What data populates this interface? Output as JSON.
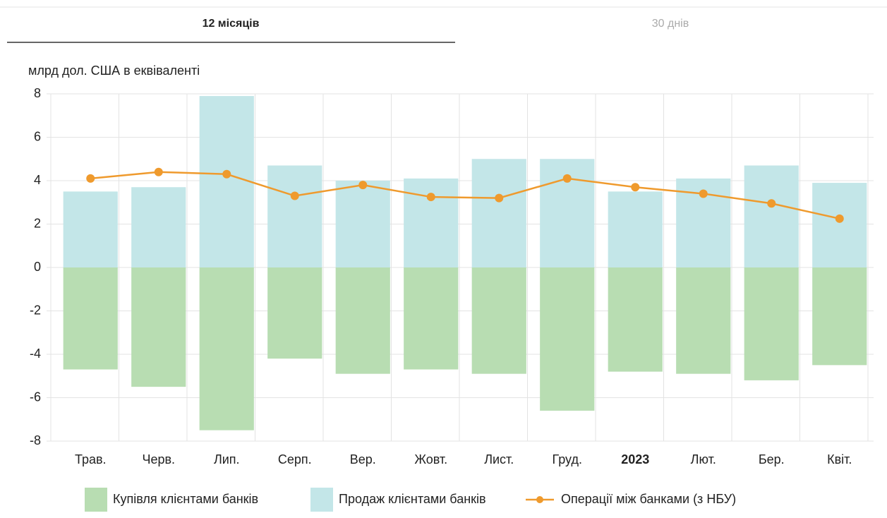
{
  "tabs": [
    {
      "label": "12 місяців",
      "active": true
    },
    {
      "label": "30 днів",
      "active": false
    }
  ],
  "chart_data": {
    "type": "bar",
    "y_axis_title": "млрд дол. США в еквіваленті",
    "categories": [
      "Трав.",
      "Черв.",
      "Лип.",
      "Серп.",
      "Вер.",
      "Жовт.",
      "Лист.",
      "Груд.",
      "2023",
      "Лют.",
      "Бер.",
      "Квіт."
    ],
    "series": [
      {
        "name": "Купівля клієнтами банків",
        "type": "bar",
        "color": "#b8ddb2",
        "values": [
          -4.7,
          -5.5,
          -7.5,
          -4.2,
          -4.9,
          -4.7,
          -4.9,
          -6.6,
          -4.8,
          -4.9,
          -5.2,
          -4.5
        ]
      },
      {
        "name": "Продаж клієнтами банків",
        "type": "bar",
        "color": "#c3e6e8",
        "values": [
          3.5,
          3.7,
          7.9,
          4.7,
          4.0,
          4.1,
          5.0,
          5.0,
          3.5,
          4.1,
          4.7,
          3.9
        ]
      },
      {
        "name": "Операції між банками (з НБУ)",
        "type": "line",
        "color": "#ef9a2d",
        "values": [
          4.1,
          4.4,
          4.3,
          3.3,
          3.8,
          3.25,
          3.2,
          4.1,
          3.7,
          3.4,
          2.95,
          2.25
        ]
      }
    ],
    "ylim": [
      -8,
      8
    ],
    "yticks": [
      -8,
      -6,
      -4,
      -2,
      0,
      2,
      4,
      6,
      8
    ],
    "grid": true,
    "legend": "bottom"
  }
}
